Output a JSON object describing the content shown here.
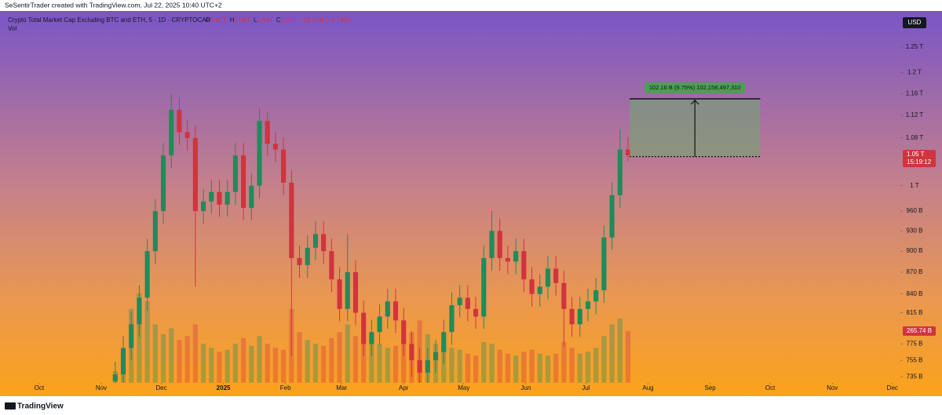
{
  "header": {
    "credit": "SeSentirTrader created with TradingView.com, Jul 22, 2025 10:40 UTC+2"
  },
  "chart_data": {
    "type": "candlestick",
    "title": "Crypto Total Market Cap Excluding BTC and ETH, 5 · 1D · CRYPTOCAP",
    "ohlc_legend": [
      {
        "key": "O",
        "text": "1.07T"
      },
      {
        "key": "H",
        "text": "1.08T"
      },
      {
        "key": "L",
        "text": "1.04T"
      },
      {
        "key": "C",
        "text": "1.05T"
      }
    ],
    "change": "−18.57B (−1.74%)",
    "volume_title": "Vol",
    "currency": "USD",
    "categories": [
      null,
      null,
      null,
      null,
      null,
      null,
      null,
      null,
      null,
      null,
      null,
      null,
      null,
      null,
      null,
      null,
      null,
      null,
      null,
      null,
      null,
      null,
      null,
      null,
      null,
      null,
      null,
      null,
      null,
      null,
      null,
      null,
      null,
      null,
      null,
      null,
      null,
      null,
      null,
      null,
      null,
      null,
      null,
      null,
      null,
      null,
      null,
      null,
      null,
      null,
      null,
      null,
      null,
      null,
      null,
      null,
      null,
      null,
      null,
      null,
      null,
      null,
      null,
      null,
      null
    ],
    "open": [
      730,
      738,
      770,
      800,
      835,
      900,
      960,
      1050,
      1130,
      1090,
      1080,
      960,
      975,
      990,
      970,
      990,
      1050,
      965,
      1000,
      1110,
      1070,
      1060,
      1005,
      890,
      880,
      905,
      925,
      900,
      860,
      820,
      870,
      815,
      775,
      790,
      810,
      830,
      805,
      775,
      755,
      740,
      755,
      765,
      790,
      825,
      835,
      820,
      810,
      890,
      930,
      890,
      885,
      900,
      860,
      840,
      850,
      875,
      855,
      820,
      800,
      820,
      830,
      845,
      920,
      985,
      1060
    ],
    "high": [
      753,
      785,
      816,
      852,
      918,
      979,
      1071,
      1160,
      1153,
      1112,
      1102,
      995,
      1010,
      1010,
      1010,
      1071,
      1071,
      1020,
      1132,
      1125,
      1091,
      1081,
      1025,
      908,
      923,
      944,
      944,
      918,
      877,
      925,
      887,
      831,
      806,
      826,
      847,
      847,
      821,
      791,
      770,
      770,
      780,
      806,
      842,
      852,
      852,
      836,
      908,
      960,
      949,
      908,
      918,
      918,
      877,
      867,
      893,
      893,
      872,
      836,
      836,
      847,
      862,
      938,
      1005,
      1095,
      1081
    ],
    "low": [
      715,
      723,
      755,
      784,
      818,
      882,
      941,
      1029,
      1068,
      1058,
      850,
      941,
      956,
      951,
      951,
      970,
      946,
      946,
      980,
      1049,
      1039,
      985,
      760,
      862,
      862,
      887,
      882,
      843,
      804,
      804,
      799,
      760,
      760,
      774,
      794,
      789,
      760,
      735,
      725,
      725,
      740,
      750,
      774,
      809,
      804,
      794,
      794,
      872,
      872,
      867,
      867,
      843,
      823,
      823,
      833,
      838,
      772,
      784,
      784,
      804,
      813,
      828,
      902,
      965,
      1040
    ],
    "close": [
      738,
      770,
      800,
      835,
      900,
      960,
      1050,
      1130,
      1090,
      1080,
      960,
      975,
      990,
      970,
      990,
      1050,
      965,
      1000,
      1110,
      1070,
      1060,
      1005,
      890,
      880,
      905,
      925,
      900,
      860,
      820,
      870,
      815,
      775,
      790,
      810,
      830,
      805,
      775,
      755,
      740,
      755,
      765,
      790,
      825,
      835,
      820,
      810,
      890,
      930,
      890,
      885,
      900,
      860,
      840,
      850,
      875,
      855,
      820,
      800,
      820,
      830,
      845,
      920,
      985,
      1060,
      1050
    ],
    "volume": [
      60,
      150,
      380,
      460,
      420,
      300,
      250,
      280,
      220,
      240,
      300,
      200,
      180,
      160,
      170,
      200,
      230,
      190,
      240,
      200,
      180,
      170,
      380,
      260,
      220,
      200,
      190,
      230,
      260,
      300,
      240,
      250,
      220,
      200,
      180,
      190,
      230,
      260,
      320,
      250,
      200,
      190,
      180,
      170,
      150,
      140,
      210,
      200,
      170,
      150,
      140,
      160,
      170,
      150,
      140,
      150,
      210,
      180,
      150,
      160,
      180,
      240,
      300,
      330,
      265.74
    ],
    "up_color": "#1e8c5a",
    "down_color": "#d0343f",
    "log_scale": true,
    "grid": false,
    "ylim": [
      728,
      1325
    ],
    "yticks": [
      {
        "value": 1250,
        "label": "1.25 T"
      },
      {
        "value": 1200,
        "label": "1.2 T"
      },
      {
        "value": 1160,
        "label": "1.16 T"
      },
      {
        "value": 1120,
        "label": "1.12 T"
      },
      {
        "value": 1080,
        "label": "1.08 T"
      },
      {
        "value": 1000,
        "label": "1 T"
      },
      {
        "value": 960,
        "label": "960 B"
      },
      {
        "value": 930,
        "label": "930 B"
      },
      {
        "value": 900,
        "label": "900 B"
      },
      {
        "value": 870,
        "label": "870 B"
      },
      {
        "value": 840,
        "label": "840 B"
      },
      {
        "value": 815,
        "label": "815 B"
      },
      {
        "value": 775,
        "label": "775 B"
      },
      {
        "value": 755,
        "label": "755 B"
      },
      {
        "value": 735,
        "label": "735 B"
      }
    ],
    "xlim": [
      -13.6,
      98
    ],
    "xticks": [
      {
        "value": -9.5,
        "label": "Oct"
      },
      {
        "value": -1.75,
        "label": "Nov"
      },
      {
        "value": 5.75,
        "label": "Dec"
      },
      {
        "value": 13.5,
        "label": "2025"
      },
      {
        "value": 21.25,
        "label": "Feb"
      },
      {
        "value": 28.25,
        "label": "Mar"
      },
      {
        "value": 36,
        "label": "Apr"
      },
      {
        "value": 43.5,
        "label": "May"
      },
      {
        "value": 51.25,
        "label": "Jun"
      },
      {
        "value": 58.75,
        "label": "Jul"
      },
      {
        "value": 66.5,
        "label": "Aug"
      },
      {
        "value": 74.25,
        "label": "Sep"
      },
      {
        "value": 81.75,
        "label": "Oct"
      },
      {
        "value": 89.5,
        "label": "Nov"
      },
      {
        "value": 97,
        "label": "Dec"
      }
    ],
    "volume_ylim": [
      0,
      1910
    ],
    "last_price_label": "1.05 T",
    "countdown": "15:19:12",
    "last_volume_label": "265.74 B",
    "measure": {
      "from": 1048,
      "to": 1150.16,
      "x_from": 64.2,
      "x_to": 80.5,
      "label": "102.16 B (9.75%) 102,158,497,310"
    }
  },
  "footer": {
    "brand": "TradingView"
  }
}
